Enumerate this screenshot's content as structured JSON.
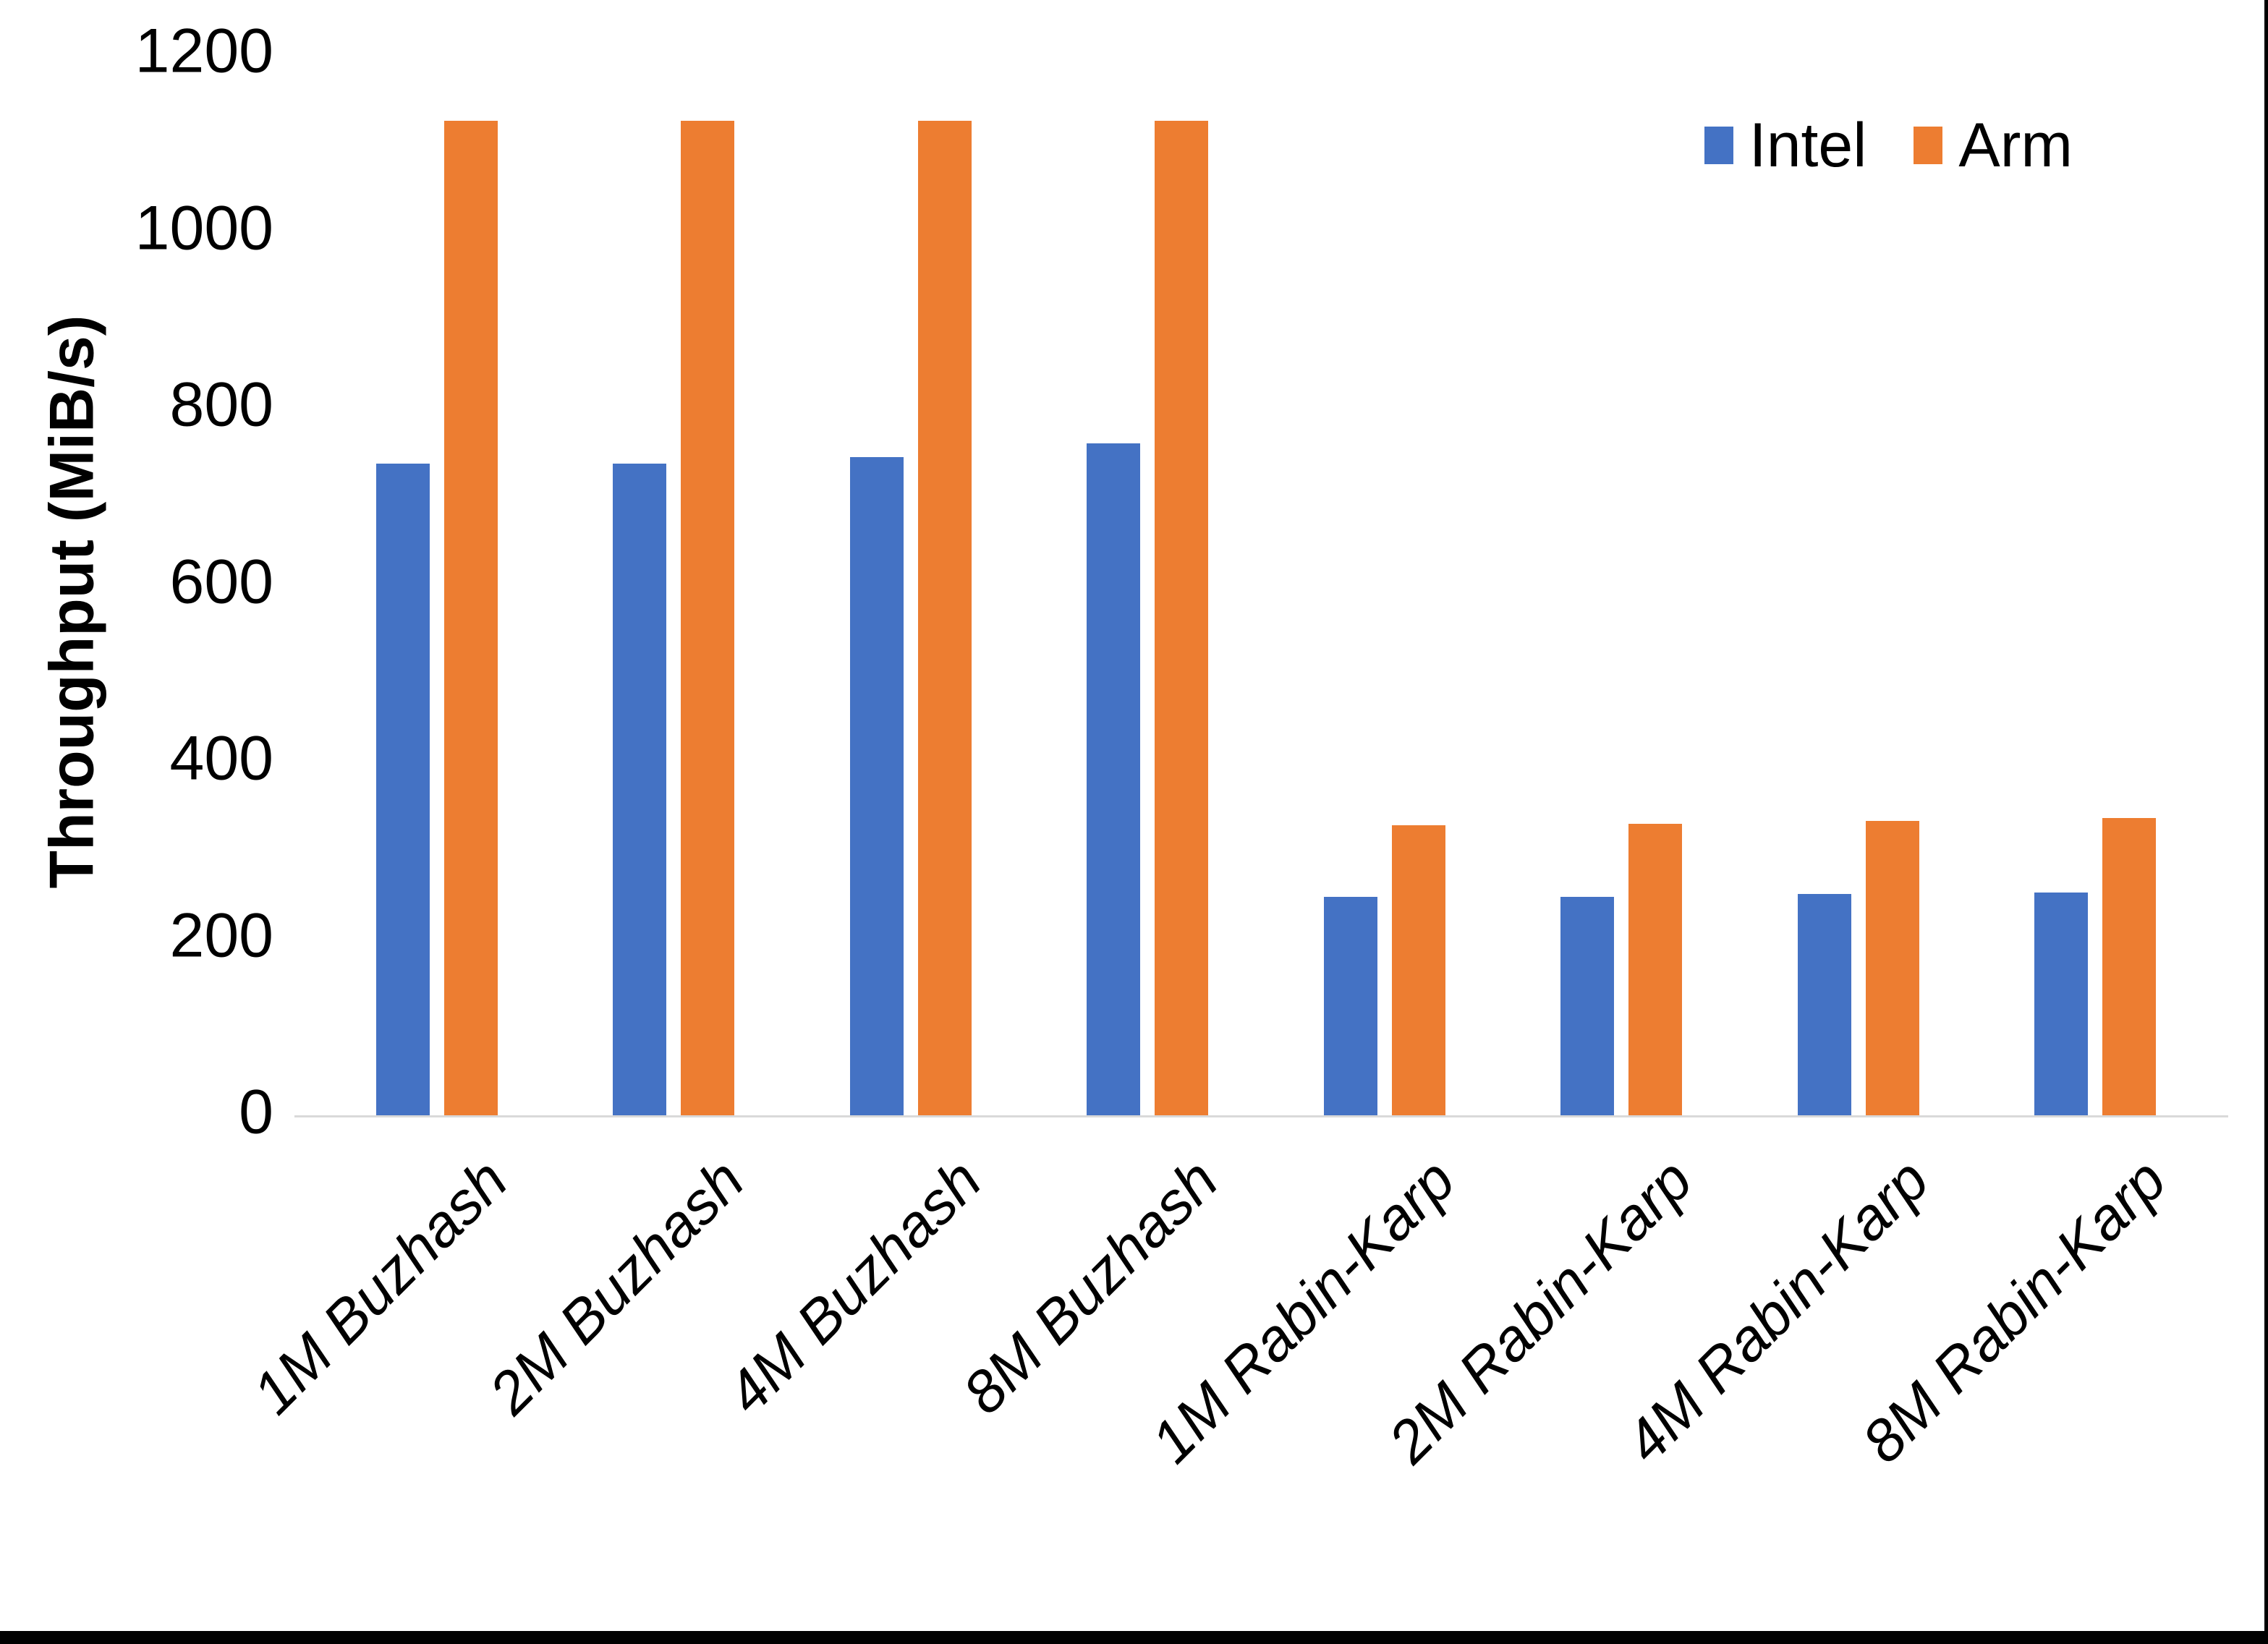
{
  "figure": {
    "background": "#ffffff",
    "border_color": "#000000"
  },
  "chart_data": {
    "type": "bar",
    "title": "",
    "xlabel": "",
    "ylabel": "Throughput (MiB/s)",
    "ylim": [
      0,
      1200
    ],
    "y_ticks": [
      0,
      200,
      400,
      600,
      800,
      1000,
      1200
    ],
    "grid": false,
    "legend_position": "top-right",
    "axis_line_color": "#d9d9d9",
    "categories": [
      "1M Buzhash",
      "2M Buzhash",
      "4M Buzhash",
      "8M Buzhash",
      "1M Rabin-Karp",
      "2M Rabin-Karp",
      "4M Rabin-Karp",
      "8M Rabin-Karp"
    ],
    "series": [
      {
        "name": "Intel",
        "color": "#4472c4",
        "values": [
          737,
          737,
          744,
          760,
          247,
          247,
          250,
          252
        ]
      },
      {
        "name": "Arm",
        "color": "#ed7d31",
        "values": [
          1125,
          1125,
          1125,
          1125,
          328,
          330,
          333,
          336
        ]
      }
    ]
  }
}
